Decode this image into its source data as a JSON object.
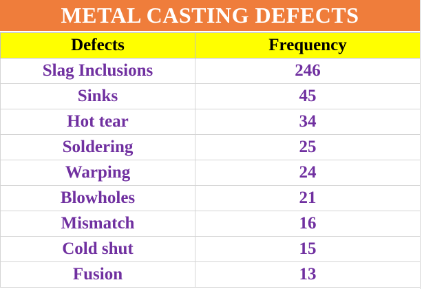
{
  "title": "METAL CASTING DEFECTS",
  "colors": {
    "title_bg": "#ef7d3b",
    "title_text": "#ffffff",
    "header_bg": "#ffff00",
    "header_text": "#000000",
    "cell_text": "#7030a0"
  },
  "columns": [
    "Defects",
    "Frequency"
  ],
  "rows": [
    {
      "defect": "Slag Inclusions",
      "frequency": "246"
    },
    {
      "defect": "Sinks",
      "frequency": "45"
    },
    {
      "defect": "Hot tear",
      "frequency": "34"
    },
    {
      "defect": "Soldering",
      "frequency": "25"
    },
    {
      "defect": "Warping",
      "frequency": "24"
    },
    {
      "defect": "Blowholes",
      "frequency": "21"
    },
    {
      "defect": "Mismatch",
      "frequency": "16"
    },
    {
      "defect": "Cold shut",
      "frequency": "15"
    },
    {
      "defect": "Fusion",
      "frequency": "13"
    }
  ]
}
